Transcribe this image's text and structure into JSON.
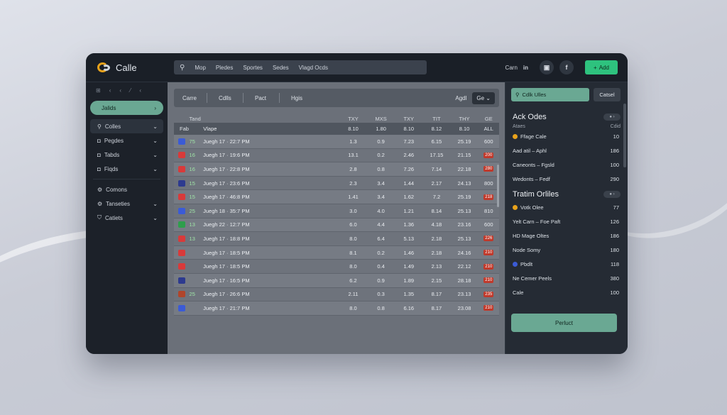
{
  "header": {
    "logo_text": "Calle",
    "search_items": [
      "Mop",
      "Pledes",
      "Sportes",
      "Sedes",
      "Vlagd Ocds"
    ],
    "right_label": "Carn",
    "social": [
      "in",
      "f"
    ],
    "cta_label": "Add"
  },
  "sidebar": {
    "top_icons": [
      "⊞",
      "‹",
      "‹",
      "⁄",
      "‹"
    ],
    "active": {
      "label": "Jalids",
      "chevron": "›"
    },
    "items": [
      {
        "icon": "⚲",
        "label": "Colles"
      },
      {
        "icon": "◘",
        "label": "Pegdes"
      },
      {
        "icon": "◘",
        "label": "Tabds"
      },
      {
        "icon": "◘",
        "label": "Fiqds"
      },
      {
        "icon": "⚙",
        "label": "Comons"
      },
      {
        "icon": "⚙",
        "label": "Tanseties"
      },
      {
        "icon": "⛉",
        "label": "Catiets"
      }
    ]
  },
  "filters": {
    "tabs": [
      "Carre",
      "Cdlls",
      "Pact",
      "Hgis"
    ],
    "right_label": "Agdl",
    "select": "Ge"
  },
  "table": {
    "group_header": "Tand",
    "group_cols": [
      "TXY",
      "MXS",
      "TXY",
      "TIT",
      "THY",
      "GE"
    ],
    "col_headers": [
      "Fab",
      "Vlape"
    ],
    "sub_cols": [
      "8.10",
      "1.80",
      "8.10",
      "8.12",
      "8.10",
      "ALL"
    ],
    "rows": [
      {
        "flag": "#3b5bd6",
        "code": "75",
        "match": "Juegh 17 · 22:7 PM",
        "v": [
          "1.3",
          "0.9",
          "7.23",
          "6.15",
          "25.19"
        ],
        "odds": "600",
        "badge": false
      },
      {
        "flag": "#d93a3a",
        "code": "16",
        "match": "Juegh 17 · 19:6 PM",
        "v": [
          "13.1",
          "0.2",
          "2.46",
          "17.15",
          "21.15"
        ],
        "odds": "200",
        "badge": true
      },
      {
        "flag": "#d93a3a",
        "code": "16",
        "match": "Juegh 17 · 22:8 PM",
        "v": [
          "2.8",
          "0.8",
          "7.26",
          "7.14",
          "22.18"
        ],
        "odds": "280",
        "badge": true
      },
      {
        "flag": "#2d3a8f",
        "code": "15",
        "match": "Juegh 17 · 23:6 PM",
        "v": [
          "2.3",
          "3.4",
          "1.44",
          "2.17",
          "24.13"
        ],
        "odds": "800",
        "badge": false
      },
      {
        "flag": "#d93a3a",
        "code": "15",
        "match": "Juegh 17 · 46:8 PM",
        "v": [
          "1.41",
          "3.4",
          "1.62",
          "7.2",
          "25.19"
        ],
        "odds": "218",
        "badge": true
      },
      {
        "flag": "#3b5bd6",
        "code": "25",
        "match": "Juegh 18 · 35:7 PM",
        "v": [
          "3.0",
          "4.0",
          "1.21",
          "8.14",
          "25.13"
        ],
        "odds": "810",
        "badge": false
      },
      {
        "flag": "#2e9e4c",
        "code": "13",
        "match": "Juegh 22 · 12:7 PM",
        "v": [
          "6.0",
          "4.4",
          "1.36",
          "4.18",
          "23.16"
        ],
        "odds": "600",
        "badge": false
      },
      {
        "flag": "#d93a3a",
        "code": "13",
        "match": "Juegh 17 · 18:8 PM",
        "v": [
          "8.0",
          "6.4",
          "5.13",
          "2.18",
          "25.13"
        ],
        "odds": "226",
        "badge": true
      },
      {
        "flag": "#d93a3a",
        "code": "",
        "match": "Juegh 17 · 18:5 PM",
        "v": [
          "8.1",
          "0.2",
          "1.46",
          "2.18",
          "24.16"
        ],
        "odds": "210",
        "badge": true
      },
      {
        "flag": "#d93a3a",
        "code": "",
        "match": "Juegh 17 · 18:5 PM",
        "v": [
          "8.0",
          "0.4",
          "1.49",
          "2.13",
          "22.12"
        ],
        "odds": "210",
        "badge": true
      },
      {
        "flag": "#2d3a8f",
        "code": "",
        "match": "Juegh 17 · 16:5 PM",
        "v": [
          "6.2",
          "0.9",
          "1.89",
          "2.15",
          "28.18"
        ],
        "odds": "210",
        "badge": true
      },
      {
        "flag": "#b0452b",
        "code": "25",
        "match": "Juegh 17 · 26:6 PM",
        "v": [
          "2.11",
          "0.3",
          "1.35",
          "8.17",
          "23.13"
        ],
        "odds": "235",
        "badge": true
      },
      {
        "flag": "#3b5bd6",
        "code": "",
        "match": "Juegh 17 · 21:7 PM",
        "v": [
          "8.0",
          "0.8",
          "6.16",
          "8.17",
          "23.08"
        ],
        "odds": "210",
        "badge": true
      }
    ]
  },
  "right_panel": {
    "search_placeholder": "Cdlk Ulles",
    "button_label": "Catsel",
    "section1": {
      "title": "Ack Odes",
      "sub_left": "Ataes",
      "sub_right": "Cdid",
      "rows": [
        {
          "dot": "#e8a21b",
          "label": "Ffage Cale",
          "value": "10"
        },
        {
          "dot": "",
          "label": "Aad atil – Aphl",
          "value": "186"
        },
        {
          "dot": "",
          "label": "Caneonts – Fgsld",
          "value": "100"
        },
        {
          "dot": "",
          "label": "Wedonts – Fedf",
          "value": "290"
        }
      ]
    },
    "section2": {
      "title": "Tratim Orliles",
      "rows": [
        {
          "dot": "#e8a21b",
          "label": "Votk Olee",
          "value": "77"
        },
        {
          "dot": "",
          "label": "Yelt Carn – Foe Paft",
          "value": "126"
        },
        {
          "dot": "",
          "label": "HD Mage Oltes",
          "value": "186"
        },
        {
          "dot": "",
          "label": "Node Somy",
          "value": "180"
        },
        {
          "dot": "#3b5bd6",
          "label": "Pbdlt",
          "value": "118"
        },
        {
          "dot": "",
          "label": "Ne Cemer Peels",
          "value": "380"
        },
        {
          "dot": "",
          "label": "Cale",
          "value": "100"
        }
      ]
    },
    "cta_label": "Perluct"
  }
}
